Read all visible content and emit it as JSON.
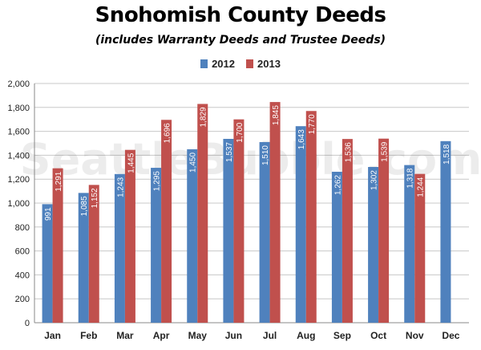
{
  "title": "Snohomish County Deeds",
  "subtitle": "(includes Warranty Deeds and Trustee Deeds)",
  "watermark": "SeattleBubble.com",
  "colors": {
    "s2012": "#4f81bd",
    "s2013": "#c0504d",
    "grid": "#c8c8c8"
  },
  "chart_data": {
    "type": "bar",
    "categories": [
      "Jan",
      "Feb",
      "Mar",
      "Apr",
      "May",
      "Jun",
      "Jul",
      "Aug",
      "Sep",
      "Oct",
      "Nov",
      "Dec"
    ],
    "series": [
      {
        "name": "2012",
        "values": [
          991,
          1085,
          1243,
          1295,
          1450,
          1537,
          1510,
          1643,
          1262,
          1302,
          1318,
          1518
        ],
        "labels": [
          "991",
          "1,085",
          "1,243",
          "1,295",
          "1,450",
          "1,537",
          "1,510",
          "1,643",
          "1,262",
          "1,302",
          "1,318",
          "1,518"
        ]
      },
      {
        "name": "2013",
        "values": [
          1291,
          1152,
          1445,
          1696,
          1829,
          1700,
          1845,
          1770,
          1536,
          1539,
          1244,
          null
        ],
        "labels": [
          "1,291",
          "1,152",
          "1,445",
          "1,696",
          "1,829",
          "1,700",
          "1,845",
          "1,770",
          "1,536",
          "1,539",
          "1,244",
          ""
        ]
      }
    ],
    "ylim": [
      0,
      2000
    ],
    "yticks": [
      "0",
      "200",
      "400",
      "600",
      "800",
      "1,000",
      "1,200",
      "1,400",
      "1,600",
      "1,800",
      "2,000"
    ],
    "ytick_values": [
      0,
      200,
      400,
      600,
      800,
      1000,
      1200,
      1400,
      1600,
      1800,
      2000
    ],
    "grid": true,
    "legend_position": "top-center"
  }
}
